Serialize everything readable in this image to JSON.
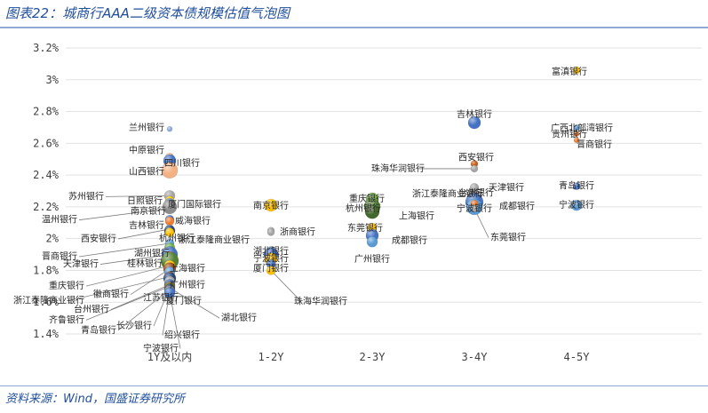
{
  "figure_title": "图表22：城商行AAA二级资本债规模估值气泡图",
  "source": "资料来源：Wind，国盛证券研究所",
  "colors": {
    "accent": "#1f4e9c",
    "grid": "#e2e2e2",
    "leader": "#7f7f7f"
  },
  "chart_data": {
    "type": "scatter",
    "title": "",
    "xlabel": "",
    "ylabel": "",
    "categories": [
      "1Y及以内",
      "1-2Y",
      "2-3Y",
      "3-4Y",
      "4-5Y"
    ],
    "ylim": [
      1.4,
      3.2
    ],
    "yticks": [
      "1.4%",
      "1.6%",
      "1.8%",
      "2%",
      "2.2%",
      "2.4%",
      "2.6%",
      "2.8%",
      "3%",
      "3.2%"
    ],
    "grid": "horizontal",
    "points": [
      {
        "name": "兰州银行",
        "cat": 0,
        "y": 2.69,
        "size": 3,
        "color": "#8eaadb"
      },
      {
        "name": "中原银行",
        "cat": 0,
        "y": 2.51,
        "size": 5,
        "color": "#f4b183"
      },
      {
        "name": "四川银行",
        "cat": 0,
        "y": 2.49,
        "size": 7,
        "color": "#4472c4"
      },
      {
        "name": "山西银行",
        "cat": 0,
        "y": 2.43,
        "size": 9,
        "color": "#f4b183"
      },
      {
        "name": "苏州银行",
        "cat": 0,
        "y": 2.27,
        "size": 6,
        "color": "#a5a5a5"
      },
      {
        "name": "日照银行",
        "cat": 0,
        "y": 2.24,
        "size": 5,
        "color": "#ffc000"
      },
      {
        "name": "厦门国际银行",
        "cat": 0,
        "y": 2.22,
        "size": 6,
        "color": "#5b9bd5"
      },
      {
        "name": "温州银行",
        "cat": 0,
        "y": 2.19,
        "size": 5,
        "color": "#70ad47"
      },
      {
        "name": "南京银行",
        "cat": 0,
        "y": 2.2,
        "size": 8,
        "color": "#8c8c8c"
      },
      {
        "name": "吉林银行",
        "cat": 0,
        "y": 2.12,
        "size": 5,
        "color": "#4472c4"
      },
      {
        "name": "威海银行",
        "cat": 0,
        "y": 2.11,
        "size": 5,
        "color": "#ed7d31"
      },
      {
        "name": "西安银行",
        "cat": 0,
        "y": 2.06,
        "size": 5,
        "color": "#a5a5a5"
      },
      {
        "name": "杭州银行",
        "cat": 0,
        "y": 2.05,
        "size": 6,
        "color": "#264478"
      },
      {
        "name": "浙江泰隆商业银行",
        "cat": 0,
        "y": 2.04,
        "size": 5,
        "color": "#ffc000"
      },
      {
        "name": "晋商银行",
        "cat": 0,
        "y": 1.97,
        "size": 5,
        "color": "#5b9bd5"
      },
      {
        "name": "湖州银行",
        "cat": 0,
        "y": 1.94,
        "size": 6,
        "color": "#70ad47"
      },
      {
        "name": "天津银行",
        "cat": 0,
        "y": 1.9,
        "size": 9,
        "color": "#4472c4"
      },
      {
        "name": "桂林银行",
        "cat": 0,
        "y": 1.88,
        "size": 7,
        "color": "#ed7d31"
      },
      {
        "name": "上海银行",
        "cat": 0,
        "y": 1.86,
        "size": 10,
        "color": "#548235"
      },
      {
        "name": "重庆银行",
        "cat": 0,
        "y": 1.83,
        "size": 6,
        "color": "#ffc000"
      },
      {
        "name": "徽商银行",
        "cat": 0,
        "y": 1.81,
        "size": 7,
        "color": "#9e480e"
      },
      {
        "name": "广州银行",
        "cat": 0,
        "y": 1.79,
        "size": 6,
        "color": "#5b9bd5"
      },
      {
        "name": "浙江泰隆商业银行",
        "cat": 0,
        "y": 1.76,
        "size": 6,
        "color": "#ed7d31"
      },
      {
        "name": "江苏银行",
        "cat": 0,
        "y": 1.75,
        "size": 7,
        "color": "#264478"
      },
      {
        "name": "厦门银行",
        "cat": 0,
        "y": 1.73,
        "size": 6,
        "color": "#a5a5a5"
      },
      {
        "name": "台州银行",
        "cat": 0,
        "y": 1.71,
        "size": 6,
        "color": "#4472c4"
      },
      {
        "name": "齐鲁银行",
        "cat": 0,
        "y": 1.7,
        "size": 6,
        "color": "#636363"
      },
      {
        "name": "长沙银行",
        "cat": 0,
        "y": 1.69,
        "size": 6,
        "color": "#997300"
      },
      {
        "name": "湖北银行",
        "cat": 0,
        "y": 1.69,
        "size": 5,
        "color": "#43682b"
      },
      {
        "name": "青岛银行",
        "cat": 0,
        "y": 1.68,
        "size": 6,
        "color": "#264478"
      },
      {
        "name": "绍兴银行",
        "cat": 0,
        "y": 1.67,
        "size": 6,
        "color": "#7f7f7f"
      },
      {
        "name": "宁波银行",
        "cat": 0,
        "y": 1.66,
        "size": 6,
        "color": "#4472c4"
      },
      {
        "name": "南京银行",
        "cat": 1,
        "y": 2.21,
        "size": 7,
        "color": "#ffc000"
      },
      {
        "name": "宁波银行",
        "cat": 1,
        "y": 2.05,
        "size": 4,
        "color": "#a5a5a5"
      },
      {
        "name": "浙商银行",
        "cat": 1,
        "y": 2.04,
        "size": 4,
        "color": "#a5a5a5"
      },
      {
        "name": "湖北银行",
        "cat": 1,
        "y": 1.93,
        "size": 4,
        "color": "#a5a5a5"
      },
      {
        "name": "宁波银行",
        "cat": 1,
        "y": 1.9,
        "size": 8,
        "color": "#4472c4"
      },
      {
        "name": "广州银行",
        "cat": 1,
        "y": 1.87,
        "size": 7,
        "color": "#ffc000"
      },
      {
        "name": "厦门银行",
        "cat": 1,
        "y": 1.84,
        "size": 5,
        "color": "#4472c4"
      },
      {
        "name": "珠海华润银行",
        "cat": 1,
        "y": 1.8,
        "size": 5,
        "color": "#ffc000"
      },
      {
        "name": "重庆银行",
        "cat": 2,
        "y": 2.25,
        "size": 7,
        "color": "#70ad47"
      },
      {
        "name": "杭州银行",
        "cat": 2,
        "y": 2.2,
        "size": 9,
        "color": "#548235"
      },
      {
        "name": "上海银行",
        "cat": 2,
        "y": 2.17,
        "size": 8,
        "color": "#43682b"
      },
      {
        "name": "东莞银行",
        "cat": 2,
        "y": 2.07,
        "size": 5,
        "color": "#ffc000"
      },
      {
        "name": "成都银行",
        "cat": 2,
        "y": 2.02,
        "size": 7,
        "color": "#4472c4"
      },
      {
        "name": "广州银行",
        "cat": 2,
        "y": 1.98,
        "size": 6,
        "color": "#5b9bd5"
      },
      {
        "name": "吉林银行",
        "cat": 3,
        "y": 2.73,
        "size": 7,
        "color": "#4472c4"
      },
      {
        "name": "西安银行",
        "cat": 3,
        "y": 2.47,
        "size": 4,
        "color": "#c55a11"
      },
      {
        "name": "珠海华润银行",
        "cat": 3,
        "y": 2.44,
        "size": 4,
        "color": "#a5a5a5"
      },
      {
        "name": "天津银行",
        "cat": 3,
        "y": 2.32,
        "size": 5,
        "color": "#a5a5a5"
      },
      {
        "name": "台州银行",
        "cat": 3,
        "y": 2.27,
        "size": 5,
        "color": "#a5a5a5"
      },
      {
        "name": "浙江泰隆商业银行",
        "cat": 3,
        "y": 2.23,
        "size": 10,
        "color": "#4472c4"
      },
      {
        "name": "宁波银行",
        "cat": 3,
        "y": 2.2,
        "size": 9,
        "color": "#5b9bd5"
      },
      {
        "name": "成都银行",
        "cat": 3,
        "y": 2.22,
        "size": 4,
        "color": "#ed7d31"
      },
      {
        "name": "东莞银行",
        "cat": 3,
        "y": 2.19,
        "size": 4,
        "color": "#a5a5a5"
      },
      {
        "name": "富滇银行",
        "cat": 4,
        "y": 3.06,
        "size": 4,
        "color": "#ffc000"
      },
      {
        "name": "广西北部湾银行",
        "cat": 4,
        "y": 2.7,
        "size": 3,
        "color": "#5b9bd5"
      },
      {
        "name": "贵州银行",
        "cat": 4,
        "y": 2.66,
        "size": 3,
        "color": "#ed7d31"
      },
      {
        "name": "晋商银行",
        "cat": 4,
        "y": 2.62,
        "size": 3,
        "color": "#ed7d31"
      },
      {
        "name": "青岛银行",
        "cat": 4,
        "y": 2.33,
        "size": 4,
        "color": "#4472c4"
      },
      {
        "name": "宁波银行",
        "cat": 4,
        "y": 2.21,
        "size": 6,
        "color": "#5b9bd5"
      }
    ],
    "labels": [
      {
        "text": "兰州银行",
        "pt": 0,
        "dx": -26,
        "dy": 2,
        "leader": false
      },
      {
        "text": "中原银行",
        "pt": 1,
        "dx": -26,
        "dy": -5,
        "leader": false
      },
      {
        "text": "四川银行",
        "pt": 2,
        "dx": 14,
        "dy": 6,
        "leader": false
      },
      {
        "text": "山西银行",
        "pt": 3,
        "dx": -26,
        "dy": 5,
        "leader": false
      },
      {
        "text": "苏州银行",
        "pt": 4,
        "dx": -94,
        "dy": 4,
        "leader": true
      },
      {
        "text": "日照银行",
        "pt": 5,
        "dx": -28,
        "dy": 4,
        "leader": false
      },
      {
        "text": "厦门国际银行",
        "pt": 6,
        "dx": 28,
        "dy": 4,
        "leader": false
      },
      {
        "text": "温州银行",
        "pt": 7,
        "dx": -124,
        "dy": 16,
        "leader": true
      },
      {
        "text": "南京银行",
        "pt": 8,
        "dx": -24,
        "dy": 8,
        "leader": false
      },
      {
        "text": "吉林银行",
        "pt": 9,
        "dx": -26,
        "dy": 10,
        "leader": false
      },
      {
        "text": "威海银行",
        "pt": 10,
        "dx": 26,
        "dy": 3,
        "leader": false
      },
      {
        "text": "西安银行",
        "pt": 11,
        "dx": -80,
        "dy": 14,
        "leader": true
      },
      {
        "text": "杭州银行",
        "pt": 12,
        "dx": 8,
        "dy": 12,
        "leader": false
      },
      {
        "text": "浙江泰隆商业银行",
        "pt": 13,
        "dx": 50,
        "dy": 12,
        "leader": false
      },
      {
        "text": "晋商银行",
        "pt": 14,
        "dx": -124,
        "dy": 18,
        "leader": true
      },
      {
        "text": "湖州银行",
        "pt": 15,
        "dx": -20,
        "dy": 9,
        "leader": false
      },
      {
        "text": "天津银行",
        "pt": 16,
        "dx": -100,
        "dy": 14,
        "leader": true
      },
      {
        "text": "桂林银行",
        "pt": 17,
        "dx": -28,
        "dy": 10,
        "leader": false
      },
      {
        "text": "上海银行",
        "pt": 18,
        "dx": 20,
        "dy": 12,
        "leader": false
      },
      {
        "text": "重庆银行",
        "pt": 19,
        "dx": -116,
        "dy": 26,
        "leader": true
      },
      {
        "text": "徽商银行",
        "pt": 20,
        "dx": -66,
        "dy": 32,
        "leader": true
      },
      {
        "text": "广州银行",
        "pt": 21,
        "dx": 20,
        "dy": 18,
        "leader": false
      },
      {
        "text": "浙江泰隆商业银行",
        "pt": 22,
        "dx": -136,
        "dy": 30,
        "leader": true
      },
      {
        "text": "江苏银行",
        "pt": 23,
        "dx": -10,
        "dy": 25,
        "leader": false
      },
      {
        "text": "厦门银行",
        "pt": 24,
        "dx": 16,
        "dy": 25,
        "leader": false
      },
      {
        "text": "台州银行",
        "pt": 25,
        "dx": -88,
        "dy": 31,
        "leader": true
      },
      {
        "text": "齐鲁银行",
        "pt": 26,
        "dx": -116,
        "dy": 41,
        "leader": true
      },
      {
        "text": "长沙银行",
        "pt": 27,
        "dx": -40,
        "dy": 46,
        "leader": true
      },
      {
        "text": "湖北银行",
        "pt": 28,
        "dx": 78,
        "dy": 37,
        "leader": true
      },
      {
        "text": "青岛银行",
        "pt": 29,
        "dx": -80,
        "dy": 49,
        "leader": true
      },
      {
        "text": "绍兴银行",
        "pt": 30,
        "dx": 14,
        "dy": 53,
        "leader": true
      },
      {
        "text": "宁波银行",
        "pt": 31,
        "dx": -10,
        "dy": 66,
        "leader": true
      },
      {
        "text": "南京银行",
        "pt": 32,
        "dx": 0,
        "dy": 4,
        "leader": false
      },
      {
        "text": "浙商银行",
        "pt": 34,
        "dx": 30,
        "dy": 3,
        "leader": false
      },
      {
        "text": "湖北银行",
        "pt": 35,
        "dx": 0,
        "dy": 5,
        "leader": false
      },
      {
        "text": "宁波银行",
        "pt": 36,
        "dx": 0,
        "dy": 8,
        "leader": false
      },
      {
        "text": "厦门银行",
        "pt": 38,
        "dx": 0,
        "dy": 8,
        "leader": false
      },
      {
        "text": "珠海华润银行",
        "pt": 39,
        "dx": 56,
        "dy": 38,
        "leader": true
      },
      {
        "text": "重庆银行",
        "pt": 40,
        "dx": -6,
        "dy": 3,
        "leader": false
      },
      {
        "text": "杭州银行",
        "pt": 41,
        "dx": -10,
        "dy": 5,
        "leader": false
      },
      {
        "text": "上海银行",
        "pt": 42,
        "dx": 50,
        "dy": 8,
        "leader": false
      },
      {
        "text": "东莞银行",
        "pt": 43,
        "dx": -8,
        "dy": 4,
        "leader": false
      },
      {
        "text": "成都银行",
        "pt": 44,
        "dx": 42,
        "dy": 9,
        "leader": false
      },
      {
        "text": "广州银行",
        "pt": 45,
        "dx": 0,
        "dy": 23,
        "leader": false
      },
      {
        "text": "吉林银行",
        "pt": 46,
        "dx": 0,
        "dy": -6,
        "leader": false
      },
      {
        "text": "西安银行",
        "pt": 47,
        "dx": 2,
        "dy": -4,
        "leader": false
      },
      {
        "text": "珠海华润银行",
        "pt": 48,
        "dx": -86,
        "dy": 3,
        "leader": true
      },
      {
        "text": "天津银行",
        "pt": 49,
        "dx": 36,
        "dy": 3,
        "leader": false
      },
      {
        "text": "台州银行",
        "pt": 50,
        "dx": 2,
        "dy": 0,
        "leader": false
      },
      {
        "text": "浙江泰隆商业银行",
        "pt": 51,
        "dx": -30,
        "dy": -6,
        "leader": false
      },
      {
        "text": "宁波银行",
        "pt": 52,
        "dx": 0,
        "dy": 5,
        "leader": false
      },
      {
        "text": "成都银行",
        "pt": 53,
        "dx": 48,
        "dy": 6,
        "leader": false
      },
      {
        "text": "东莞银行",
        "pt": 54,
        "dx": 38,
        "dy": 36,
        "leader": true
      },
      {
        "text": "富滇银行",
        "pt": 55,
        "dx": -8,
        "dy": 5,
        "leader": false
      },
      {
        "text": "广西北部湾银行",
        "pt": 56,
        "dx": 6,
        "dy": 4,
        "leader": false
      },
      {
        "text": "贵州银行",
        "pt": 57,
        "dx": -8,
        "dy": 4,
        "leader": false
      },
      {
        "text": "晋商银行",
        "pt": 58,
        "dx": 20,
        "dy": 8,
        "leader": false
      },
      {
        "text": "青岛银行",
        "pt": 59,
        "dx": 0,
        "dy": 3,
        "leader": false
      },
      {
        "text": "宁波银行",
        "pt": 60,
        "dx": 0,
        "dy": 3,
        "leader": false
      }
    ]
  }
}
